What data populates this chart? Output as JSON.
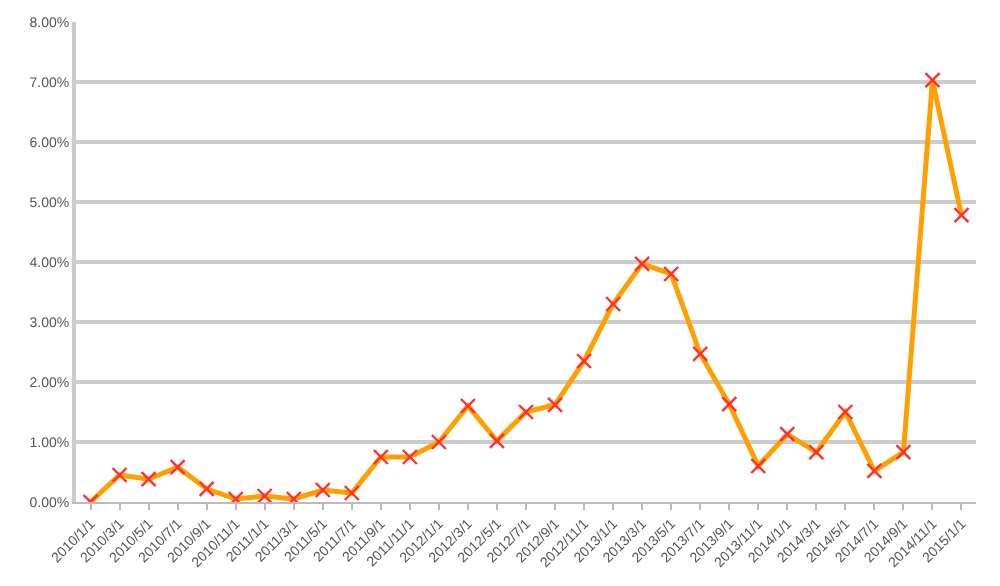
{
  "chart_data": {
    "type": "line",
    "categories": [
      "2010/1/1",
      "2010/3/1",
      "2010/5/1",
      "2010/7/1",
      "2010/9/1",
      "2010/11/1",
      "2011/1/1",
      "2011/3/1",
      "2011/5/1",
      "2011/7/1",
      "2011/9/1",
      "2011/11/1",
      "2012/1/1",
      "2012/3/1",
      "2012/5/1",
      "2012/7/1",
      "2012/9/1",
      "2012/11/1",
      "2013/1/1",
      "2013/3/1",
      "2013/5/1",
      "2013/7/1",
      "2013/9/1",
      "2013/11/1",
      "2014/1/1",
      "2014/3/1",
      "2014/5/1",
      "2014/7/1",
      "2014/9/1",
      "2014/11/1",
      "2015/1/1"
    ],
    "series": [
      {
        "color": "#ffa000",
        "values": [
          0,
          0.45,
          0.38,
          0.58,
          0.22,
          0.05,
          0.1,
          0.05,
          0.2,
          0.15,
          0.75,
          0.75,
          1.0,
          1.6,
          1.02,
          1.5,
          1.62,
          2.35,
          3.3,
          3.97,
          3.8,
          2.47,
          1.63,
          0.6,
          1.13,
          0.83,
          1.5,
          0.52,
          0.83,
          7.03,
          4.78
        ]
      }
    ],
    "ylim": [
      0,
      8
    ],
    "yticks": [
      {
        "value": 0,
        "label": "0.00%"
      },
      {
        "value": 1,
        "label": "1.00%"
      },
      {
        "value": 2,
        "label": "2.00%"
      },
      {
        "value": 3,
        "label": "3.00%"
      },
      {
        "value": 4,
        "label": "4.00%"
      },
      {
        "value": 5,
        "label": "5.00%"
      },
      {
        "value": 6,
        "label": "6.00%"
      },
      {
        "value": 7,
        "label": "7.00%"
      },
      {
        "value": 8,
        "label": "8.00%"
      }
    ],
    "grid": "y",
    "marker": "cross",
    "line_style": "solid"
  }
}
